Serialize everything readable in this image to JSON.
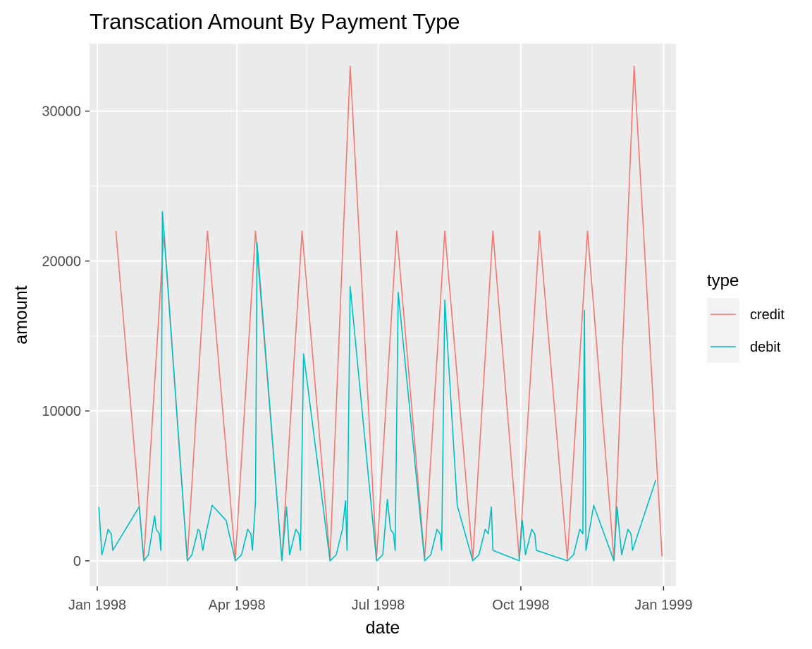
{
  "chart_data": {
    "type": "line",
    "title": "Transcation Amount By Payment Type",
    "xlabel": "date",
    "ylabel": "amount",
    "x_type": "date",
    "xlim": [
      "1997-12-27",
      "1999-01-09"
    ],
    "ylim": [
      -1700,
      34500
    ],
    "x_ticks": [
      {
        "value": "1998-01-01",
        "label": "Jan 1998"
      },
      {
        "value": "1998-04-01",
        "label": "Apr 1998"
      },
      {
        "value": "1998-07-01",
        "label": "Jul 1998"
      },
      {
        "value": "1998-10-01",
        "label": "Oct 1998"
      },
      {
        "value": "1999-01-01",
        "label": "Jan 1999"
      }
    ],
    "x_minor_ticks": [
      "1998-02-15",
      "1998-05-16",
      "1998-08-16",
      "1998-11-16"
    ],
    "y_ticks": [
      0,
      10000,
      20000,
      30000
    ],
    "y_minor_ticks": [
      5000,
      15000,
      25000
    ],
    "grid": true,
    "background": "#ebebeb",
    "legend": {
      "title": "type",
      "position": "right"
    },
    "series": [
      {
        "name": "credit",
        "color": "#f8766d",
        "points": [
          [
            "1998-01-13",
            22000
          ],
          [
            "1998-01-31",
            100
          ],
          [
            "1998-02-13",
            22000
          ],
          [
            "1998-02-28",
            100
          ],
          [
            "1998-03-13",
            22000
          ],
          [
            "1998-03-31",
            100
          ],
          [
            "1998-04-13",
            22000
          ],
          [
            "1998-04-30",
            100
          ],
          [
            "1998-05-13",
            22000
          ],
          [
            "1998-05-31",
            100
          ],
          [
            "1998-06-13",
            33000
          ],
          [
            "1998-06-30",
            100
          ],
          [
            "1998-07-13",
            22000
          ],
          [
            "1998-07-31",
            100
          ],
          [
            "1998-08-13",
            22000
          ],
          [
            "1998-08-31",
            100
          ],
          [
            "1998-09-13",
            22000
          ],
          [
            "1998-09-30",
            100
          ],
          [
            "1998-10-13",
            22000
          ],
          [
            "1998-10-31",
            100
          ],
          [
            "1998-11-13",
            22000
          ],
          [
            "1998-11-30",
            100
          ],
          [
            "1998-12-13",
            33000
          ],
          [
            "1998-12-31",
            300
          ]
        ]
      },
      {
        "name": "debit",
        "color": "#00bfc4",
        "points": [
          [
            "1998-01-02",
            3600
          ],
          [
            "1998-01-04",
            400
          ],
          [
            "1998-01-06",
            1200
          ],
          [
            "1998-01-08",
            2100
          ],
          [
            "1998-01-10",
            1800
          ],
          [
            "1998-01-11",
            700
          ],
          [
            "1998-01-28",
            3600
          ],
          [
            "1998-01-31",
            0
          ],
          [
            "1998-02-03",
            400
          ],
          [
            "1998-02-07",
            3000
          ],
          [
            "1998-02-08",
            2100
          ],
          [
            "1998-02-10",
            1800
          ],
          [
            "1998-02-11",
            700
          ],
          [
            "1998-02-12",
            23300
          ],
          [
            "1998-02-28",
            0
          ],
          [
            "1998-03-03",
            400
          ],
          [
            "1998-03-07",
            2100
          ],
          [
            "1998-03-08",
            2000
          ],
          [
            "1998-03-10",
            700
          ],
          [
            "1998-03-12",
            1800
          ],
          [
            "1998-03-16",
            3700
          ],
          [
            "1998-03-25",
            2700
          ],
          [
            "1998-03-31",
            0
          ],
          [
            "1998-04-04",
            400
          ],
          [
            "1998-04-08",
            2100
          ],
          [
            "1998-04-10",
            1800
          ],
          [
            "1998-04-11",
            700
          ],
          [
            "1998-04-13",
            4000
          ],
          [
            "1998-04-14",
            21200
          ],
          [
            "1998-04-30",
            0
          ],
          [
            "1998-05-03",
            3600
          ],
          [
            "1998-05-05",
            400
          ],
          [
            "1998-05-09",
            2100
          ],
          [
            "1998-05-11",
            1800
          ],
          [
            "1998-05-12",
            700
          ],
          [
            "1998-05-14",
            13800
          ],
          [
            "1998-05-31",
            0
          ],
          [
            "1998-06-04",
            400
          ],
          [
            "1998-06-08",
            2100
          ],
          [
            "1998-06-10",
            4000
          ],
          [
            "1998-06-11",
            700
          ],
          [
            "1998-06-13",
            18300
          ],
          [
            "1998-06-30",
            0
          ],
          [
            "1998-07-04",
            400
          ],
          [
            "1998-07-07",
            4100
          ],
          [
            "1998-07-09",
            2100
          ],
          [
            "1998-07-11",
            1800
          ],
          [
            "1998-07-12",
            700
          ],
          [
            "1998-07-14",
            17900
          ],
          [
            "1998-07-31",
            0
          ],
          [
            "1998-08-04",
            400
          ],
          [
            "1998-08-08",
            2100
          ],
          [
            "1998-08-10",
            1800
          ],
          [
            "1998-08-11",
            700
          ],
          [
            "1998-08-13",
            17400
          ],
          [
            "1998-08-21",
            3700
          ],
          [
            "1998-08-31",
            0
          ],
          [
            "1998-09-04",
            400
          ],
          [
            "1998-09-08",
            2100
          ],
          [
            "1998-09-10",
            1800
          ],
          [
            "1998-09-12",
            3600
          ],
          [
            "1998-09-13",
            700
          ],
          [
            "1998-09-30",
            0
          ],
          [
            "1998-10-02",
            2700
          ],
          [
            "1998-10-04",
            400
          ],
          [
            "1998-10-08",
            2100
          ],
          [
            "1998-10-10",
            1800
          ],
          [
            "1998-10-11",
            700
          ],
          [
            "1998-10-31",
            0
          ],
          [
            "1998-11-04",
            400
          ],
          [
            "1998-11-08",
            2100
          ],
          [
            "1998-11-10",
            1800
          ],
          [
            "1998-11-11",
            16700
          ],
          [
            "1998-11-12",
            700
          ],
          [
            "1998-11-17",
            3700
          ],
          [
            "1998-11-30",
            0
          ],
          [
            "1998-12-02",
            3600
          ],
          [
            "1998-12-05",
            400
          ],
          [
            "1998-12-09",
            2100
          ],
          [
            "1998-12-11",
            1800
          ],
          [
            "1998-12-12",
            700
          ],
          [
            "1998-12-27",
            5400
          ]
        ]
      }
    ]
  }
}
